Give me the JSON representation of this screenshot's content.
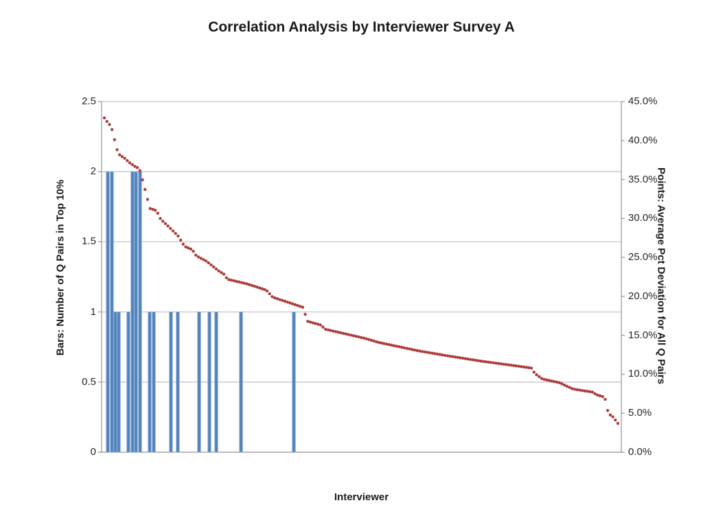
{
  "title": "Correlation Analysis by Interviewer Survey A",
  "chart_data": {
    "type": "combo-bar-scatter",
    "title": "Correlation Analysis by Interviewer Survey A",
    "xlabel": "Interviewer",
    "legend": "none",
    "left_axis": {
      "label": "Bars: Number of Q Pairs in Top 10%",
      "ticks": [
        "0",
        "0.5",
        "1",
        "1.5",
        "2",
        "2.5"
      ],
      "range": [
        0,
        2.5
      ],
      "gridlines": true
    },
    "right_axis": {
      "label": "Points: Average Pct Deviation for All Q Pairs",
      "ticks": [
        "0.0%",
        "5.0%",
        "10.0%",
        "15.0%",
        "20.0%",
        "25.0%",
        "30.0%",
        "35.0%",
        "40.0%",
        "45.0%"
      ],
      "range": [
        0,
        45
      ]
    },
    "bar_series": {
      "name": "Bars: Number of Q Pairs in Top 10%",
      "color": "#4F81BD",
      "edge_color": "#8DACD2",
      "points": [
        {
          "pos": 0.0119,
          "value": 2
        },
        {
          "pos": 0.0198,
          "value": 2
        },
        {
          "pos": 0.0264,
          "value": 1
        },
        {
          "pos": 0.033,
          "value": 1
        },
        {
          "pos": 0.0515,
          "value": 1
        },
        {
          "pos": 0.0594,
          "value": 2
        },
        {
          "pos": 0.0661,
          "value": 2
        },
        {
          "pos": 0.074,
          "value": 2
        },
        {
          "pos": 0.0925,
          "value": 1
        },
        {
          "pos": 0.1004,
          "value": 1
        },
        {
          "pos": 0.1334,
          "value": 1
        },
        {
          "pos": 0.1466,
          "value": 1
        },
        {
          "pos": 0.1876,
          "value": 1
        },
        {
          "pos": 0.2074,
          "value": 1
        },
        {
          "pos": 0.2206,
          "value": 1
        },
        {
          "pos": 0.2682,
          "value": 1
        },
        {
          "pos": 0.3699,
          "value": 1
        }
      ]
    },
    "point_series": {
      "name": "Points: Average Pct Deviation for All Q Pairs",
      "color": "#AC3E3B",
      "count": 203,
      "pos_start": 0.0053,
      "pos_end": 0.9934,
      "curve_pos_pct": [
        [
          0.0053,
          42.9
        ],
        [
          0.0119,
          42.3
        ],
        [
          0.0185,
          41.8
        ],
        [
          0.0264,
          39.7
        ],
        [
          0.0317,
          38.3
        ],
        [
          0.0383,
          38.0
        ],
        [
          0.0449,
          37.7
        ],
        [
          0.0528,
          37.2
        ],
        [
          0.0634,
          36.7
        ],
        [
          0.0727,
          36.4
        ],
        [
          0.0793,
          34.8
        ],
        [
          0.0872,
          32.8
        ],
        [
          0.0925,
          31.3
        ],
        [
          0.1057,
          31.0
        ],
        [
          0.1136,
          29.9
        ],
        [
          0.1281,
          29.0
        ],
        [
          0.1466,
          27.8
        ],
        [
          0.1598,
          26.4
        ],
        [
          0.1744,
          26.0
        ],
        [
          0.1823,
          25.2
        ],
        [
          0.2021,
          24.5
        ],
        [
          0.2246,
          23.3
        ],
        [
          0.2365,
          22.8
        ],
        [
          0.2417,
          22.2
        ],
        [
          0.2801,
          21.6
        ],
        [
          0.3171,
          20.8
        ],
        [
          0.329,
          19.9
        ],
        [
          0.3739,
          18.9
        ],
        [
          0.3871,
          18.6
        ],
        [
          0.3963,
          16.8
        ],
        [
          0.4228,
          16.3
        ],
        [
          0.4294,
          15.8
        ],
        [
          0.5073,
          14.6
        ],
        [
          0.5324,
          14.1
        ],
        [
          0.6104,
          13.0
        ],
        [
          0.6631,
          12.4
        ],
        [
          0.7292,
          11.7
        ],
        [
          0.7953,
          11.1
        ],
        [
          0.827,
          10.8
        ],
        [
          0.8336,
          10.1
        ],
        [
          0.8481,
          9.4
        ],
        [
          0.8824,
          8.9
        ],
        [
          0.8877,
          8.7
        ],
        [
          0.9075,
          8.1
        ],
        [
          0.9458,
          7.7
        ],
        [
          0.9511,
          7.4
        ],
        [
          0.9657,
          7.1
        ],
        [
          0.9709,
          6.6
        ],
        [
          0.9749,
          4.9
        ],
        [
          0.9815,
          4.7
        ],
        [
          0.9855,
          4.4
        ],
        [
          0.9934,
          3.7
        ]
      ]
    },
    "colors": {
      "gridline": "#C6C6C6",
      "axis": "#9B9B9B",
      "text": "#1A1A1A"
    }
  }
}
